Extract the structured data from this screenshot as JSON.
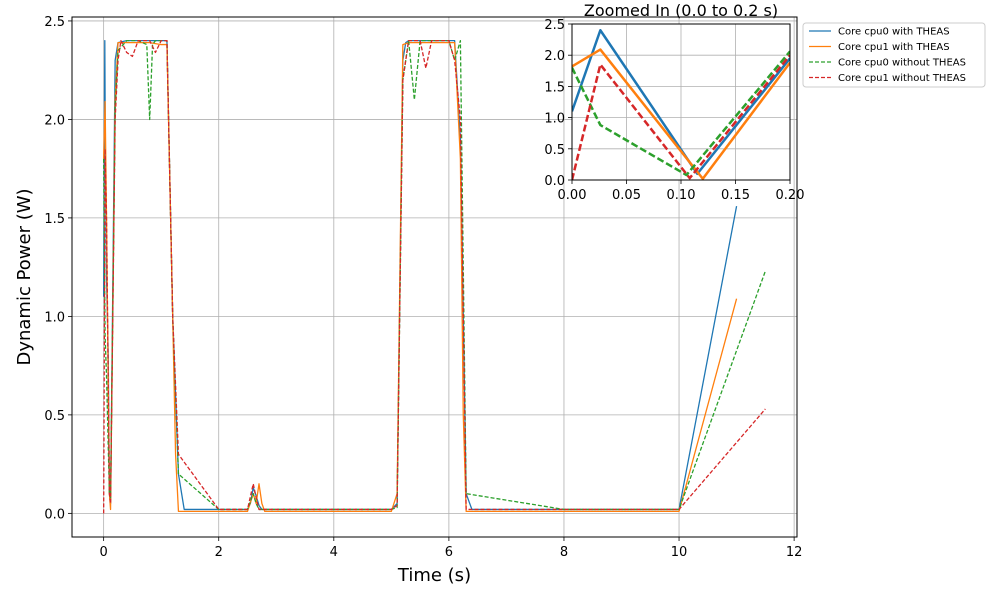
{
  "chart_data": [
    {
      "type": "line",
      "title": "",
      "xlabel": "Time (s)",
      "ylabel": "Dynamic Power (W)",
      "xlim": [
        -0.55,
        12.05
      ],
      "ylim": [
        -0.12,
        2.52
      ],
      "xticks": [
        0,
        2,
        4,
        6,
        8,
        10,
        12
      ],
      "yticks": [
        0.0,
        0.5,
        1.0,
        1.5,
        2.0,
        2.5
      ],
      "xtick_labels": [
        "0",
        "2",
        "4",
        "6",
        "8",
        "10",
        "12"
      ],
      "ytick_labels": [
        "0.0",
        "0.5",
        "1.0",
        "1.5",
        "2.0",
        "2.5"
      ],
      "grid": true,
      "legend_placement": "outside-top-right",
      "series": [
        {
          "name": "Core cpu0 with THEAS",
          "color": "#1f77b4",
          "dash": "solid",
          "x": [
            0,
            0.02,
            0.03,
            0.05,
            0.08,
            0.1,
            0.12,
            0.2,
            0.25,
            0.4,
            0.6,
            0.8,
            1.0,
            1.1,
            1.2,
            1.3,
            1.4,
            2.0,
            2.5,
            2.55,
            2.6,
            2.65,
            2.7,
            2.75,
            2.8,
            3.5,
            4.0,
            5.0,
            5.1,
            5.2,
            5.25,
            5.3,
            5.5,
            6.0,
            6.1,
            6.2,
            6.3,
            6.4,
            8.0,
            10.0,
            11.0
          ],
          "y": [
            1.1,
            2.4,
            1.8,
            1.2,
            0.8,
            0.1,
            0.05,
            2.3,
            2.39,
            2.4,
            2.4,
            2.4,
            2.4,
            2.4,
            1.0,
            0.2,
            0.02,
            0.02,
            0.02,
            0.05,
            0.13,
            0.09,
            0.04,
            0.02,
            0.02,
            0.02,
            0.02,
            0.02,
            0.05,
            2.3,
            2.39,
            2.4,
            2.4,
            2.4,
            2.4,
            1.9,
            0.1,
            0.02,
            0.02,
            0.02,
            1.56
          ]
        },
        {
          "name": "Core cpu1 with THEAS",
          "color": "#ff7f0e",
          "dash": "solid",
          "x": [
            0,
            0.025,
            0.05,
            0.1,
            0.12,
            0.2,
            0.25,
            0.4,
            0.6,
            0.8,
            1.0,
            1.1,
            1.2,
            1.25,
            1.3,
            2.0,
            2.5,
            2.6,
            2.65,
            2.7,
            2.75,
            2.8,
            4.0,
            5.0,
            5.1,
            5.2,
            5.3,
            6.0,
            6.1,
            6.2,
            6.25,
            6.3,
            8.0,
            10.0,
            11.0
          ],
          "y": [
            1.8,
            2.09,
            1.5,
            0.1,
            0.02,
            2.1,
            2.39,
            2.39,
            2.39,
            2.39,
            2.38,
            2.38,
            1.0,
            0.3,
            0.01,
            0.01,
            0.01,
            0.1,
            0.05,
            0.15,
            0.05,
            0.01,
            0.01,
            0.01,
            0.1,
            2.38,
            2.39,
            2.39,
            2.39,
            1.8,
            0.5,
            0.01,
            0.01,
            0.01,
            1.09
          ]
        },
        {
          "name": "Core cpu0 without THEAS",
          "color": "#2ca02c",
          "dash": "dashed",
          "x": [
            0,
            0.025,
            0.05,
            0.1,
            0.12,
            0.2,
            0.25,
            0.4,
            0.6,
            0.75,
            0.8,
            0.85,
            0.9,
            1.0,
            1.1,
            1.2,
            1.3,
            2.0,
            2.5,
            2.6,
            2.65,
            2.7,
            4.0,
            5.0,
            5.1,
            5.2,
            5.3,
            5.4,
            5.5,
            6.0,
            6.1,
            6.2,
            6.3,
            8.0,
            10.0,
            11.5
          ],
          "y": [
            1.8,
            0.9,
            0.7,
            0.1,
            0.08,
            2.05,
            2.35,
            2.4,
            2.4,
            2.38,
            2.0,
            2.38,
            2.4,
            2.4,
            2.4,
            1.0,
            0.2,
            0.02,
            0.02,
            0.1,
            0.05,
            0.02,
            0.02,
            0.02,
            0.03,
            2.2,
            2.4,
            2.1,
            2.4,
            2.4,
            2.3,
            2.4,
            0.1,
            0.02,
            0.02,
            1.23
          ]
        },
        {
          "name": "Core cpu1 without THEAS",
          "color": "#d62728",
          "dash": "dashed",
          "x": [
            0,
            0.025,
            0.05,
            0.1,
            0.12,
            0.2,
            0.25,
            0.3,
            0.4,
            0.5,
            0.6,
            0.8,
            0.9,
            1.0,
            1.1,
            1.2,
            1.3,
            2.0,
            2.5,
            2.6,
            2.65,
            2.7,
            4.0,
            5.0,
            5.1,
            5.2,
            5.3,
            5.5,
            5.6,
            5.7,
            6.0,
            6.1,
            6.2,
            6.3,
            8.0,
            10.0,
            11.5
          ],
          "y": [
            0.0,
            1.85,
            1.5,
            0.1,
            0.05,
            2.0,
            2.3,
            2.4,
            2.34,
            2.32,
            2.4,
            2.4,
            2.34,
            2.4,
            2.4,
            1.0,
            0.3,
            0.02,
            0.02,
            0.15,
            0.08,
            0.02,
            0.02,
            0.02,
            0.04,
            2.2,
            2.4,
            2.4,
            2.26,
            2.4,
            2.4,
            2.3,
            2.0,
            0.02,
            0.02,
            0.02,
            0.53
          ]
        }
      ]
    },
    {
      "type": "line",
      "title": "Zoomed In (0.0 to 0.2 s)",
      "xlabel": "",
      "ylabel": "",
      "xlim": [
        0.0,
        0.2
      ],
      "ylim": [
        0.0,
        2.5
      ],
      "xticks": [
        0.0,
        0.05,
        0.1,
        0.15,
        0.2
      ],
      "yticks": [
        0.0,
        0.5,
        1.0,
        1.5,
        2.0,
        2.5
      ],
      "xtick_labels": [
        "0.00",
        "0.05",
        "0.10",
        "0.15",
        "0.20"
      ],
      "ytick_labels": [
        "0.0",
        "0.5",
        "1.0",
        "1.5",
        "2.0",
        "2.5"
      ],
      "grid": true,
      "series": [
        {
          "name": "Core cpu0 with THEAS",
          "color": "#1f77b4",
          "dash": "solid",
          "x": [
            0.0,
            0.026,
            0.115,
            0.2
          ],
          "y": [
            1.1,
            2.4,
            0.1,
            1.95
          ]
        },
        {
          "name": "Core cpu1 with THEAS",
          "color": "#ff7f0e",
          "dash": "solid",
          "x": [
            0.0,
            0.026,
            0.12,
            0.2
          ],
          "y": [
            1.82,
            2.09,
            0.02,
            1.88
          ]
        },
        {
          "name": "Core cpu0 without THEAS",
          "color": "#2ca02c",
          "dash": "dashed",
          "x": [
            0.0,
            0.026,
            0.105,
            0.2
          ],
          "y": [
            1.8,
            0.88,
            0.08,
            2.06
          ]
        },
        {
          "name": "Core cpu1 without THEAS",
          "color": "#d62728",
          "dash": "dashed",
          "x": [
            0.0,
            0.026,
            0.108,
            0.2
          ],
          "y": [
            0.0,
            1.85,
            0.03,
            2.0
          ]
        }
      ]
    }
  ]
}
